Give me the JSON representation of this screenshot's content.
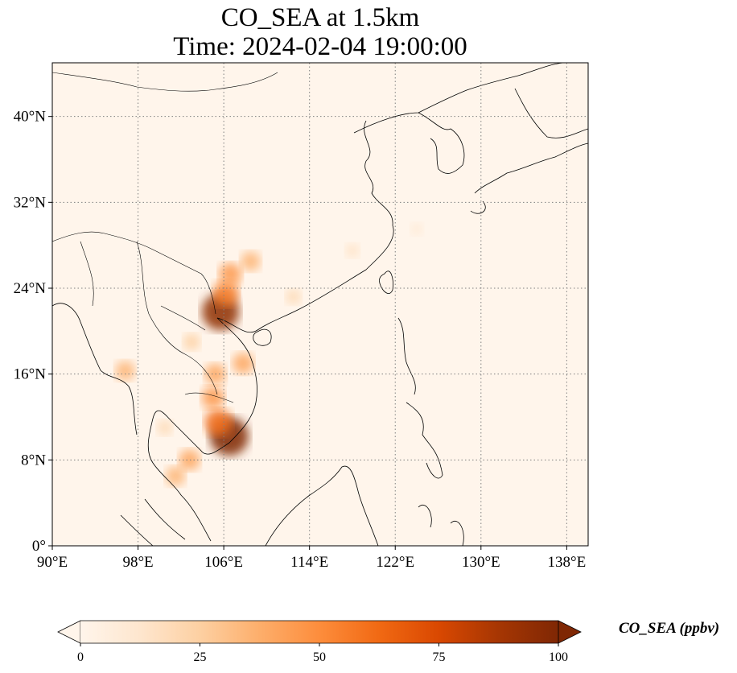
{
  "title": {
    "line1": "CO_SEA at 1.5km",
    "line2": "Time: 2024-02-04 19:00:00"
  },
  "map": {
    "lon_range": [
      90,
      140
    ],
    "lat_range": [
      0,
      45
    ],
    "lon_ticks": [
      {
        "value": 90,
        "label": "90°E"
      },
      {
        "value": 98,
        "label": "98°E"
      },
      {
        "value": 106,
        "label": "106°E"
      },
      {
        "value": 114,
        "label": "114°E"
      },
      {
        "value": 122,
        "label": "122°E"
      },
      {
        "value": 130,
        "label": "130°E"
      },
      {
        "value": 138,
        "label": "138°E"
      }
    ],
    "lat_ticks": [
      {
        "value": 0,
        "label": "0°"
      },
      {
        "value": 8,
        "label": "8°N"
      },
      {
        "value": 16,
        "label": "16°N"
      },
      {
        "value": 24,
        "label": "24°N"
      },
      {
        "value": 32,
        "label": "32°N"
      },
      {
        "value": 40,
        "label": "40°N"
      }
    ],
    "gridlines": "dotted",
    "background_color": "#fff5eb",
    "hotspots": [
      {
        "lon": 105.7,
        "lat": 21.8,
        "value": 95
      },
      {
        "lon": 106.2,
        "lat": 23.5,
        "value": 55
      },
      {
        "lon": 106.6,
        "lat": 25.3,
        "value": 45
      },
      {
        "lon": 108.5,
        "lat": 26.5,
        "value": 35
      },
      {
        "lon": 106.5,
        "lat": 10.2,
        "value": 100
      },
      {
        "lon": 105.5,
        "lat": 11.5,
        "value": 60
      },
      {
        "lon": 105.0,
        "lat": 13.8,
        "value": 45
      },
      {
        "lon": 105.2,
        "lat": 16.0,
        "value": 40
      },
      {
        "lon": 107.8,
        "lat": 17.0,
        "value": 40
      },
      {
        "lon": 102.8,
        "lat": 8.0,
        "value": 40
      },
      {
        "lon": 101.5,
        "lat": 6.5,
        "value": 35
      },
      {
        "lon": 96.8,
        "lat": 16.3,
        "value": 35
      },
      {
        "lon": 112.5,
        "lat": 23.2,
        "value": 20
      },
      {
        "lon": 118.0,
        "lat": 27.5,
        "value": 15
      },
      {
        "lon": 124.0,
        "lat": 29.5,
        "value": 10
      },
      {
        "lon": 103.0,
        "lat": 19.0,
        "value": 25
      },
      {
        "lon": 100.5,
        "lat": 11.0,
        "value": 20
      }
    ]
  },
  "colorbar": {
    "label": "CO_SEA (ppbv)",
    "min": 0,
    "max": 100,
    "extend": "both",
    "ticks": [
      {
        "value": 0,
        "label": "0"
      },
      {
        "value": 25,
        "label": "25"
      },
      {
        "value": 50,
        "label": "50"
      },
      {
        "value": 75,
        "label": "75"
      },
      {
        "value": 100,
        "label": "100"
      }
    ],
    "colors": [
      "#fff5eb",
      "#fee6ce",
      "#fdd0a2",
      "#fdae6b",
      "#fd8d3c",
      "#f16913",
      "#d94801",
      "#a63603",
      "#7f2704"
    ]
  }
}
